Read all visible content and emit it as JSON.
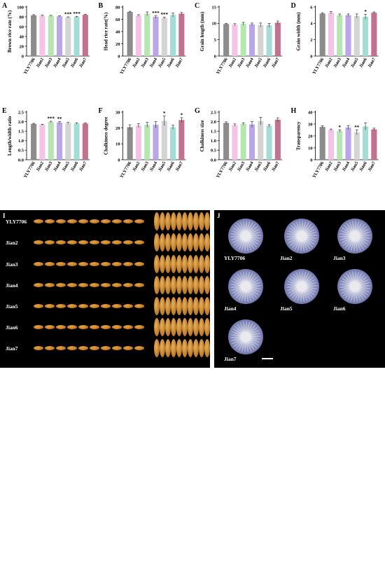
{
  "categories": [
    "YLY7706",
    "Jian2",
    "Jian3",
    "Jian4",
    "Jian5",
    "Jian6",
    "Jian7"
  ],
  "colors": [
    "#8c8c8c",
    "#f3c4e6",
    "#b6e6b2",
    "#b8a6e6",
    "#d4d4d4",
    "#a6dcd6",
    "#c2728e"
  ],
  "panels": [
    {
      "letter": "A",
      "ylabel": "Brown rice rate (%)",
      "ylim": [
        0,
        100
      ],
      "ticks": [
        0,
        20,
        40,
        60,
        80,
        100
      ],
      "values": [
        83,
        82,
        82,
        81,
        79,
        80,
        84
      ],
      "errors": [
        1.5,
        1.5,
        1,
        1,
        1,
        1,
        1
      ],
      "stars": [
        "",
        "",
        "",
        "",
        "***",
        "***",
        ""
      ]
    },
    {
      "letter": "B",
      "ylabel": "Head rice rate(%)",
      "ylim": [
        0,
        80
      ],
      "ticks": [
        0,
        20,
        40,
        60,
        80
      ],
      "values": [
        72,
        66,
        69,
        64,
        62,
        67,
        69
      ],
      "errors": [
        1,
        1.5,
        3,
        2,
        1.5,
        3,
        2
      ],
      "stars": [
        "",
        "",
        "",
        "***",
        "***",
        "",
        ""
      ]
    },
    {
      "letter": "C",
      "ylabel": "Grain length (mm)",
      "ylim": [
        0,
        15
      ],
      "ticks": [
        0,
        5,
        10,
        15
      ],
      "values": [
        9.8,
        9.6,
        9.9,
        9.7,
        9.5,
        9.4,
        10.2
      ],
      "errors": [
        0.2,
        0.3,
        0.4,
        0.4,
        0.6,
        0.6,
        0.5
      ],
      "stars": [
        "",
        "",
        "",
        "",
        "",
        "",
        ""
      ]
    },
    {
      "letter": "D",
      "ylabel": "Grain width (mm)",
      "ylim": [
        0,
        6
      ],
      "ticks": [
        0,
        2,
        4,
        6
      ],
      "values": [
        5.2,
        5.3,
        5.0,
        5.0,
        4.9,
        4.8,
        5.3
      ],
      "errors": [
        0.1,
        0.15,
        0.15,
        0.15,
        0.25,
        0.3,
        0.1
      ],
      "stars": [
        "",
        "",
        "",
        "",
        "",
        "*",
        ""
      ]
    },
    {
      "letter": "E",
      "ylabel": "Length/width ratio",
      "ylim": [
        0,
        2.5
      ],
      "ticks": [
        0,
        0.5,
        1.0,
        1.5,
        2.0,
        2.5
      ],
      "values": [
        1.88,
        1.83,
        1.98,
        1.95,
        1.92,
        1.9,
        1.9
      ],
      "errors": [
        0.03,
        0.03,
        0.04,
        0.05,
        0.04,
        0.04,
        0.04
      ],
      "stars": [
        "",
        "",
        "***",
        "**",
        "",
        "",
        ""
      ]
    },
    {
      "letter": "F",
      "ylabel": "Chalkiness degree",
      "ylim": [
        0,
        30
      ],
      "ticks": [
        0,
        10,
        20,
        30
      ],
      "values": [
        20.5,
        21.5,
        22,
        22,
        24.5,
        20.5,
        25
      ],
      "errors": [
        1.5,
        1.2,
        1.5,
        2,
        3,
        1.2,
        1.5
      ],
      "stars": [
        "",
        "",
        "",
        "",
        "*",
        "",
        "*"
      ]
    },
    {
      "letter": "G",
      "ylabel": "Chalkiness size",
      "ylim": [
        0,
        2.5
      ],
      "ticks": [
        0,
        0.5,
        1.0,
        1.5,
        2.0,
        2.5
      ],
      "values": [
        1.93,
        1.82,
        1.88,
        1.85,
        2.03,
        1.78,
        2.1
      ],
      "errors": [
        0.06,
        0.06,
        0.06,
        0.15,
        0.2,
        0.06,
        0.1
      ],
      "stars": [
        "",
        "",
        "",
        "",
        "",
        "",
        ""
      ]
    },
    {
      "letter": "H",
      "ylabel": "Transparency",
      "ylim": [
        0,
        40
      ],
      "ticks": [
        0,
        10,
        20,
        30,
        40
      ],
      "values": [
        27.5,
        25,
        24,
        27,
        23,
        28,
        25.5
      ],
      "errors": [
        1,
        0.8,
        1,
        1.5,
        2,
        3,
        1
      ],
      "stars": [
        "",
        "",
        "*",
        "",
        "**",
        "",
        ""
      ]
    }
  ],
  "chart_data": [
    {
      "type": "bar",
      "title": "A",
      "ylabel": "Brown rice rate (%)",
      "categories": [
        "YLY7706",
        "Jian2",
        "Jian3",
        "Jian4",
        "Jian5",
        "Jian6",
        "Jian7"
      ],
      "values": [
        83,
        82,
        82,
        81,
        79,
        80,
        84
      ],
      "ylim": [
        0,
        100
      ],
      "significance": [
        "",
        "",
        "",
        "",
        "***",
        "***",
        ""
      ]
    },
    {
      "type": "bar",
      "title": "B",
      "ylabel": "Head rice rate(%)",
      "categories": [
        "YLY7706",
        "Jian2",
        "Jian3",
        "Jian4",
        "Jian5",
        "Jian6",
        "Jian7"
      ],
      "values": [
        72,
        66,
        69,
        64,
        62,
        67,
        69
      ],
      "ylim": [
        0,
        80
      ],
      "significance": [
        "",
        "",
        "",
        "***",
        "***",
        "",
        ""
      ]
    },
    {
      "type": "bar",
      "title": "C",
      "ylabel": "Grain length (mm)",
      "categories": [
        "YLY7706",
        "Jian2",
        "Jian3",
        "Jian4",
        "Jian5",
        "Jian6",
        "Jian7"
      ],
      "values": [
        9.8,
        9.6,
        9.9,
        9.7,
        9.5,
        9.4,
        10.2
      ],
      "ylim": [
        0,
        15
      ],
      "significance": [
        "",
        "",
        "",
        "",
        "",
        "",
        ""
      ]
    },
    {
      "type": "bar",
      "title": "D",
      "ylabel": "Grain width (mm)",
      "categories": [
        "YLY7706",
        "Jian2",
        "Jian3",
        "Jian4",
        "Jian5",
        "Jian6",
        "Jian7"
      ],
      "values": [
        5.2,
        5.3,
        5.0,
        5.0,
        4.9,
        4.8,
        5.3
      ],
      "ylim": [
        0,
        6
      ],
      "significance": [
        "",
        "",
        "",
        "",
        "",
        "*",
        ""
      ]
    },
    {
      "type": "bar",
      "title": "E",
      "ylabel": "Length/width ratio",
      "categories": [
        "YLY7706",
        "Jian2",
        "Jian3",
        "Jian4",
        "Jian5",
        "Jian6",
        "Jian7"
      ],
      "values": [
        1.88,
        1.83,
        1.98,
        1.95,
        1.92,
        1.9,
        1.9
      ],
      "ylim": [
        0,
        2.5
      ],
      "significance": [
        "",
        "",
        "***",
        "**",
        "",
        "",
        ""
      ]
    },
    {
      "type": "bar",
      "title": "F",
      "ylabel": "Chalkiness degree",
      "categories": [
        "YLY7706",
        "Jian2",
        "Jian3",
        "Jian4",
        "Jian5",
        "Jian6",
        "Jian7"
      ],
      "values": [
        20.5,
        21.5,
        22,
        22,
        24.5,
        20.5,
        25
      ],
      "ylim": [
        0,
        30
      ],
      "significance": [
        "",
        "",
        "",
        "",
        "*",
        "",
        "*"
      ]
    },
    {
      "type": "bar",
      "title": "G",
      "ylabel": "Chalkiness size",
      "categories": [
        "YLY7706",
        "Jian2",
        "Jian3",
        "Jian4",
        "Jian5",
        "Jian6",
        "Jian7"
      ],
      "values": [
        1.93,
        1.82,
        1.88,
        1.85,
        2.03,
        1.78,
        2.1
      ],
      "ylim": [
        0,
        2.5
      ],
      "significance": [
        "",
        "",
        "",
        "",
        "",
        "",
        ""
      ]
    },
    {
      "type": "bar",
      "title": "H",
      "ylabel": "Transparency",
      "categories": [
        "YLY7706",
        "Jian2",
        "Jian3",
        "Jian4",
        "Jian5",
        "Jian6",
        "Jian7"
      ],
      "values": [
        27.5,
        25,
        24,
        27,
        23,
        28,
        25.5
      ],
      "ylim": [
        0,
        40
      ],
      "significance": [
        "",
        "",
        "*",
        "",
        "**",
        "",
        ""
      ]
    }
  ],
  "photos": {
    "left_letter": "I",
    "right_letter": "J",
    "left_rows": [
      "YLY7706",
      "Jian2",
      "Jian3",
      "Jian4",
      "Jian5",
      "Jian6",
      "Jian7"
    ],
    "right_labels": [
      "YLY7706",
      "Jian2",
      "Jian3",
      "Jian4",
      "Jian5",
      "Jian6",
      "Jian7"
    ]
  }
}
